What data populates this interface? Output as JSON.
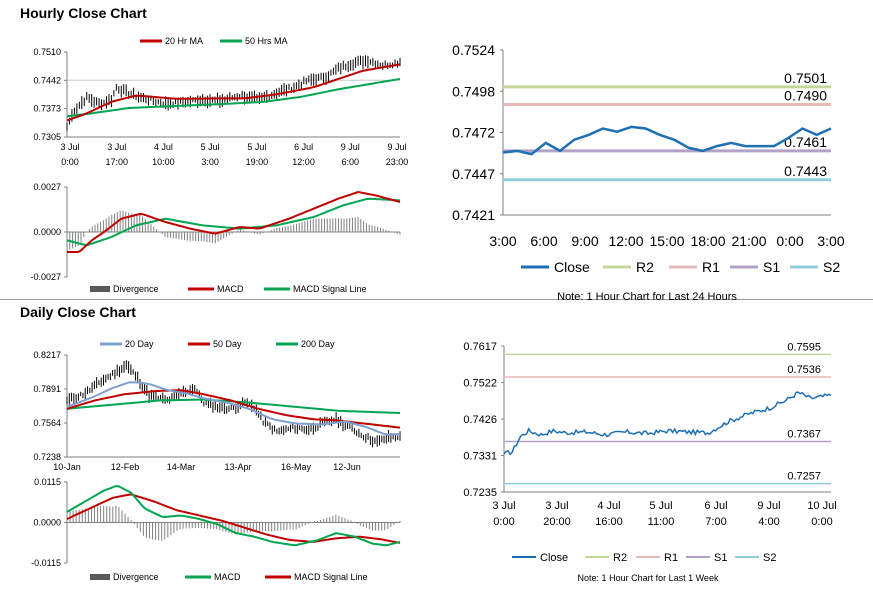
{
  "sections": {
    "hourly_title": "Hourly Close Chart",
    "daily_title": "Daily Close Chart"
  },
  "chart_data": [
    {
      "id": "hourly-price",
      "type": "line",
      "ylim": [
        0.7305,
        0.751
      ],
      "yticks": [
        "0.7510",
        "0.7442",
        "0.7373",
        "0.7305"
      ],
      "xticks": [
        [
          "3 Jul",
          "0:00"
        ],
        [
          "3 Jul",
          "17:00"
        ],
        [
          "4 Jul",
          "10:00"
        ],
        [
          "5 Jul",
          "3:00"
        ],
        [
          "5 Jul",
          "19:00"
        ],
        [
          "6 Jul",
          "12:00"
        ],
        [
          "9 Jul",
          "6:00"
        ],
        [
          "9 Jul",
          "23:00"
        ]
      ],
      "legend": [
        "20 Hr MA",
        "50 Hrs MA"
      ],
      "colors": {
        "price": "#000000",
        "ma20": "#c00000",
        "ma50": "#00a651"
      },
      "ma20_anchors": [
        [
          0,
          0.7345
        ],
        [
          8,
          0.7362
        ],
        [
          18,
          0.739
        ],
        [
          28,
          0.7405
        ],
        [
          45,
          0.7397
        ],
        [
          60,
          0.7398
        ],
        [
          72,
          0.7398
        ],
        [
          85,
          0.7408
        ],
        [
          100,
          0.7425
        ],
        [
          110,
          0.7445
        ],
        [
          120,
          0.7465
        ],
        [
          130,
          0.7475
        ],
        [
          135,
          0.748
        ]
      ],
      "ma50_anchors": [
        [
          0,
          0.7355
        ],
        [
          10,
          0.7362
        ],
        [
          25,
          0.7375
        ],
        [
          45,
          0.738
        ],
        [
          65,
          0.7385
        ],
        [
          80,
          0.739
        ],
        [
          95,
          0.7402
        ],
        [
          110,
          0.742
        ],
        [
          125,
          0.7435
        ],
        [
          135,
          0.7445
        ]
      ],
      "price_anchors": [
        [
          0,
          0.733
        ],
        [
          3,
          0.737
        ],
        [
          8,
          0.74
        ],
        [
          13,
          0.7385
        ],
        [
          18,
          0.7395
        ],
        [
          20,
          0.7425
        ],
        [
          25,
          0.741
        ],
        [
          30,
          0.74
        ],
        [
          40,
          0.7385
        ],
        [
          55,
          0.7395
        ],
        [
          62,
          0.7392
        ],
        [
          70,
          0.7405
        ],
        [
          78,
          0.7395
        ],
        [
          85,
          0.7412
        ],
        [
          92,
          0.7425
        ],
        [
          97,
          0.744
        ],
        [
          105,
          0.745
        ],
        [
          110,
          0.747
        ],
        [
          115,
          0.7482
        ],
        [
          122,
          0.749
        ],
        [
          128,
          0.7478
        ],
        [
          135,
          0.7486
        ]
      ]
    },
    {
      "id": "hourly-macd",
      "type": "line",
      "ylim": [
        -0.0027,
        0.0027
      ],
      "yticks": [
        "0.0027",
        "0.0000",
        "-0.0027"
      ],
      "legend": [
        "Divergence",
        "MACD",
        "MACD Signal Line"
      ],
      "colors": {
        "divergence": "#808080",
        "macd": "#c00000",
        "signal": "#00a651"
      },
      "macd_anchors": [
        [
          0,
          -0.0012
        ],
        [
          5,
          -0.0012
        ],
        [
          10,
          -0.0005
        ],
        [
          15,
          0.0
        ],
        [
          22,
          0.0008
        ],
        [
          30,
          0.0011
        ],
        [
          40,
          0.0006
        ],
        [
          50,
          0.0002
        ],
        [
          60,
          -0.0001
        ],
        [
          70,
          0.0003
        ],
        [
          78,
          0.0002
        ],
        [
          90,
          0.0008
        ],
        [
          100,
          0.0014
        ],
        [
          110,
          0.002
        ],
        [
          118,
          0.0024
        ],
        [
          125,
          0.0022
        ],
        [
          135,
          0.0018
        ]
      ],
      "signal_anchors": [
        [
          0,
          -0.0005
        ],
        [
          8,
          -0.0008
        ],
        [
          18,
          -0.0003
        ],
        [
          28,
          0.0004
        ],
        [
          40,
          0.0008
        ],
        [
          55,
          0.0004
        ],
        [
          70,
          0.0002
        ],
        [
          85,
          0.0004
        ],
        [
          100,
          0.0009
        ],
        [
          112,
          0.0016
        ],
        [
          122,
          0.002
        ],
        [
          135,
          0.0019
        ]
      ]
    },
    {
      "id": "hourly-24h",
      "type": "line",
      "ylim": [
        0.7421,
        0.7524
      ],
      "yticks": [
        "0.7524",
        "0.7498",
        "0.7472",
        "0.7447",
        "0.7421"
      ],
      "xticks": [
        "3:00",
        "6:00",
        "9:00",
        "12:00",
        "15:00",
        "18:00",
        "21:00",
        "0:00",
        "3:00"
      ],
      "close": [
        0.746,
        0.7461,
        0.7459,
        0.7466,
        0.7461,
        0.7468,
        0.7471,
        0.7475,
        0.7473,
        0.7476,
        0.7475,
        0.7471,
        0.7468,
        0.7463,
        0.7461,
        0.7464,
        0.7466,
        0.7464,
        0.7464,
        0.7464,
        0.7469,
        0.7475,
        0.7471,
        0.7475
      ],
      "levels": [
        {
          "name": "R2",
          "value": 0.7501,
          "label": "0.7501",
          "color": "#c4d79b"
        },
        {
          "name": "R1",
          "value": 0.749,
          "label": "0.7490",
          "color": "#e6b9b8"
        },
        {
          "name": "S1",
          "value": 0.7461,
          "label": "0.7461",
          "color": "#b3a2c7"
        },
        {
          "name": "S2",
          "value": 0.7443,
          "label": "0.7443",
          "color": "#93cddd"
        }
      ],
      "close_color": "#1f6fb4",
      "legend": [
        "Close",
        "R2",
        "R1",
        "S1",
        "S2"
      ],
      "note": "Note: 1 Hour Chart for Last 24 Hours"
    },
    {
      "id": "daily-price",
      "type": "line",
      "ylim": [
        0.7238,
        0.8217
      ],
      "yticks": [
        "0.8217",
        "0.7891",
        "0.7564",
        "0.7238"
      ],
      "xticks": [
        "10-Jan",
        "12-Feb",
        "14-Mar",
        "13-Apr",
        "16-May",
        "12-Jun"
      ],
      "legend": [
        "20 Day",
        "50 Day",
        "200 Day"
      ],
      "colors": {
        "price": "#000000",
        "ma20": "#7f9fcf",
        "ma50": "#c00000",
        "ma200": "#00a651"
      },
      "price_anchors": [
        [
          0,
          0.778
        ],
        [
          8,
          0.785
        ],
        [
          14,
          0.795
        ],
        [
          22,
          0.806
        ],
        [
          26,
          0.812
        ],
        [
          30,
          0.802
        ],
        [
          36,
          0.783
        ],
        [
          44,
          0.778
        ],
        [
          50,
          0.785
        ],
        [
          56,
          0.79
        ],
        [
          60,
          0.776
        ],
        [
          66,
          0.772
        ],
        [
          72,
          0.77
        ],
        [
          78,
          0.776
        ],
        [
          82,
          0.772
        ],
        [
          86,
          0.758
        ],
        [
          92,
          0.748
        ],
        [
          100,
          0.752
        ],
        [
          106,
          0.75
        ],
        [
          112,
          0.756
        ],
        [
          118,
          0.76
        ],
        [
          124,
          0.752
        ],
        [
          130,
          0.744
        ],
        [
          136,
          0.738
        ],
        [
          140,
          0.742
        ],
        [
          146,
          0.744
        ]
      ],
      "ma20_anchors": [
        [
          0,
          0.772
        ],
        [
          10,
          0.78
        ],
        [
          20,
          0.79
        ],
        [
          28,
          0.796
        ],
        [
          36,
          0.794
        ],
        [
          44,
          0.788
        ],
        [
          52,
          0.785
        ],
        [
          60,
          0.78
        ],
        [
          70,
          0.776
        ],
        [
          80,
          0.77
        ],
        [
          90,
          0.76
        ],
        [
          100,
          0.756
        ],
        [
          112,
          0.755
        ],
        [
          122,
          0.758
        ],
        [
          132,
          0.752
        ],
        [
          140,
          0.745
        ],
        [
          146,
          0.746
        ]
      ],
      "ma50_anchors": [
        [
          0,
          0.77
        ],
        [
          12,
          0.778
        ],
        [
          25,
          0.784
        ],
        [
          38,
          0.787
        ],
        [
          50,
          0.788
        ],
        [
          60,
          0.784
        ],
        [
          72,
          0.778
        ],
        [
          84,
          0.77
        ],
        [
          96,
          0.764
        ],
        [
          108,
          0.76
        ],
        [
          118,
          0.759
        ],
        [
          130,
          0.756
        ],
        [
          146,
          0.752
        ]
      ],
      "ma200_anchors": [
        [
          0,
          0.77
        ],
        [
          20,
          0.774
        ],
        [
          40,
          0.778
        ],
        [
          60,
          0.779
        ],
        [
          80,
          0.776
        ],
        [
          100,
          0.772
        ],
        [
          120,
          0.768
        ],
        [
          146,
          0.766
        ]
      ]
    },
    {
      "id": "daily-macd",
      "type": "line",
      "ylim": [
        -0.0115,
        0.0115
      ],
      "yticks": [
        "0.0115",
        "0.0000",
        "-0.0115"
      ],
      "legend": [
        "Divergence",
        "MACD",
        "MACD Signal Line"
      ],
      "colors": {
        "divergence": "#808080",
        "macd": "#00a651",
        "signal": "#c00000"
      },
      "macd_anchors": [
        [
          0,
          0.003
        ],
        [
          8,
          0.006
        ],
        [
          16,
          0.009
        ],
        [
          22,
          0.0105
        ],
        [
          28,
          0.0085
        ],
        [
          34,
          0.004
        ],
        [
          42,
          0.0015
        ],
        [
          50,
          0.002
        ],
        [
          58,
          0.001
        ],
        [
          66,
          -0.0005
        ],
        [
          74,
          -0.003
        ],
        [
          82,
          -0.004
        ],
        [
          90,
          -0.0055
        ],
        [
          100,
          -0.0065
        ],
        [
          110,
          -0.005
        ],
        [
          118,
          -0.003
        ],
        [
          126,
          -0.004
        ],
        [
          134,
          -0.006
        ],
        [
          140,
          -0.0065
        ],
        [
          146,
          -0.0055
        ]
      ],
      "signal_anchors": [
        [
          0,
          0.001
        ],
        [
          10,
          0.004
        ],
        [
          20,
          0.007
        ],
        [
          28,
          0.008
        ],
        [
          38,
          0.006
        ],
        [
          48,
          0.0035
        ],
        [
          58,
          0.002
        ],
        [
          68,
          0.0005
        ],
        [
          78,
          -0.0015
        ],
        [
          88,
          -0.0035
        ],
        [
          98,
          -0.005
        ],
        [
          108,
          -0.0055
        ],
        [
          118,
          -0.0045
        ],
        [
          128,
          -0.004
        ],
        [
          138,
          -0.0048
        ],
        [
          146,
          -0.0058
        ]
      ]
    },
    {
      "id": "daily-week",
      "type": "line",
      "ylim": [
        0.7235,
        0.7617
      ],
      "yticks": [
        "0.7617",
        "0.7522",
        "0.7426",
        "0.7331",
        "0.7235"
      ],
      "xticks": [
        [
          "3 Jul",
          "0:00"
        ],
        [
          "3 Jul",
          "20:00"
        ],
        [
          "4 Jul",
          "16:00"
        ],
        [
          "5 Jul",
          "11:00"
        ],
        [
          "6 Jul",
          "7:00"
        ],
        [
          "9 Jul",
          "4:00"
        ],
        [
          "10 Jul",
          "0:00"
        ]
      ],
      "close_anchors": [
        [
          0,
          0.7335
        ],
        [
          4,
          0.734
        ],
        [
          8,
          0.738
        ],
        [
          12,
          0.7395
        ],
        [
          18,
          0.7385
        ],
        [
          24,
          0.7395
        ],
        [
          30,
          0.739
        ],
        [
          40,
          0.7392
        ],
        [
          50,
          0.7385
        ],
        [
          60,
          0.7392
        ],
        [
          70,
          0.7388
        ],
        [
          80,
          0.7395
        ],
        [
          90,
          0.7392
        ],
        [
          100,
          0.739
        ],
        [
          110,
          0.742
        ],
        [
          120,
          0.744
        ],
        [
          130,
          0.7455
        ],
        [
          138,
          0.7475
        ],
        [
          144,
          0.7495
        ],
        [
          150,
          0.748
        ],
        [
          160,
          0.7488
        ]
      ],
      "levels": [
        {
          "name": "R2",
          "value": 0.7595,
          "label": "0.7595",
          "color": "#c4d79b"
        },
        {
          "name": "R1",
          "value": 0.7536,
          "label": "0.7536",
          "color": "#e6b9b8"
        },
        {
          "name": "S1",
          "value": 0.7367,
          "label": "0.7367",
          "color": "#b3a2c7"
        },
        {
          "name": "S2",
          "value": 0.7257,
          "label": "0.7257",
          "color": "#93cddd"
        }
      ],
      "close_color": "#1f6fb4",
      "legend": [
        "Close",
        "R2",
        "R1",
        "S1",
        "S2"
      ],
      "note": "Note: 1 Hour Chart for Last 1 Week"
    }
  ]
}
